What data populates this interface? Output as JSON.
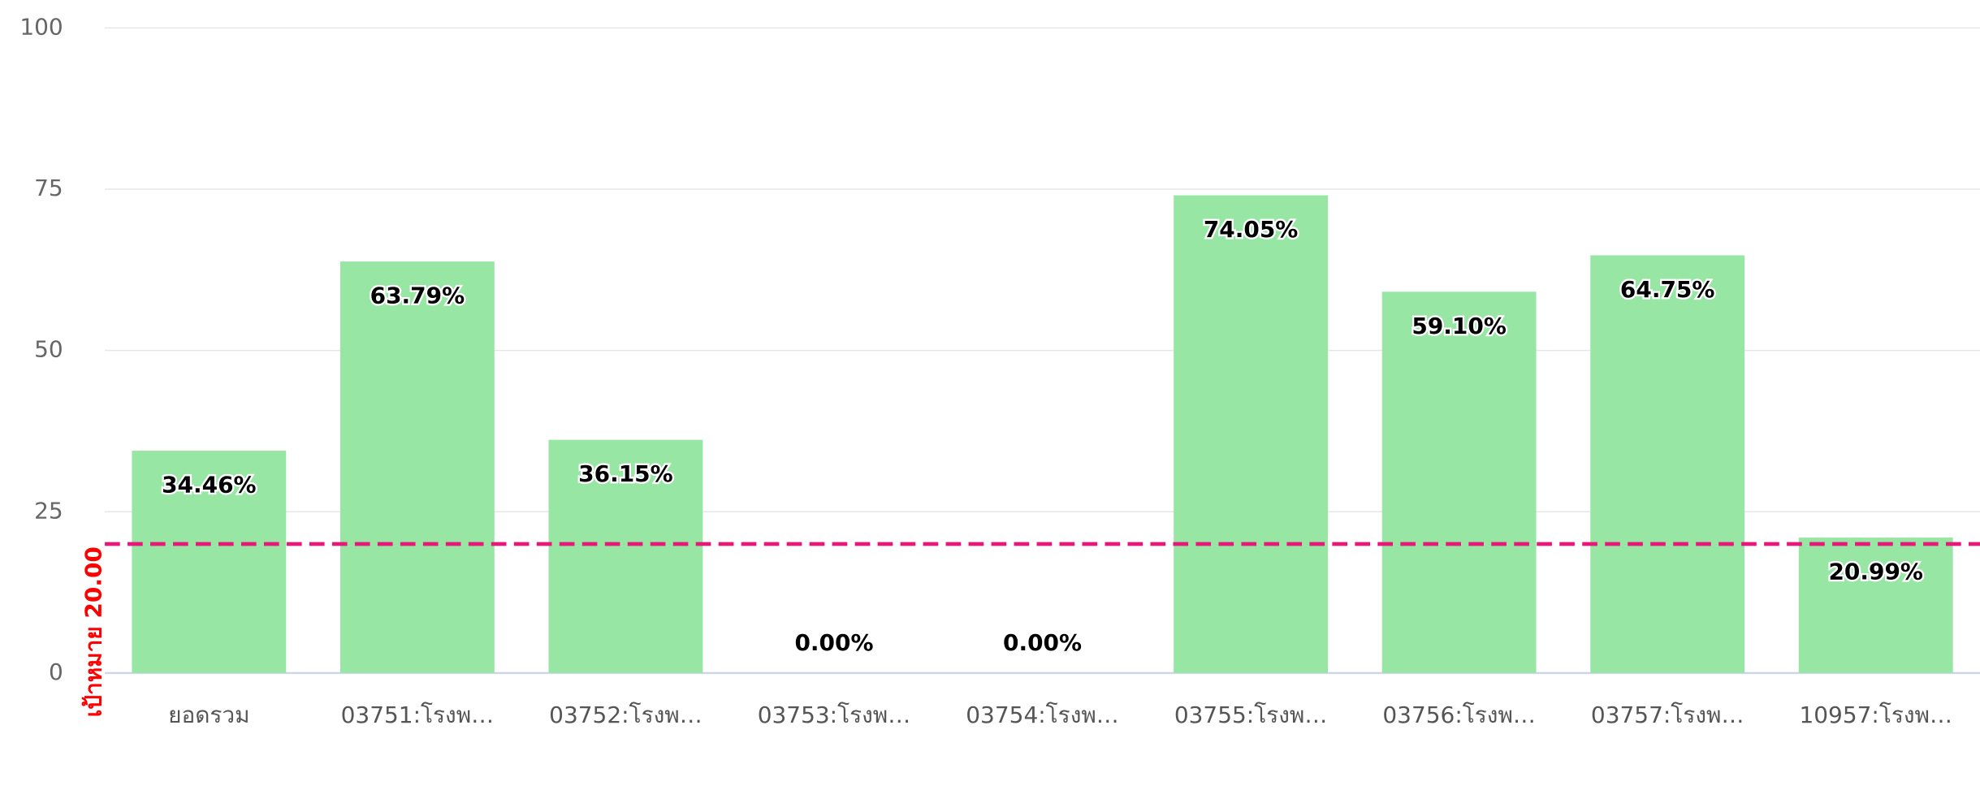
{
  "chart_data": {
    "type": "bar",
    "categories": [
      "ยอดรวม",
      "03751:โรงพ…",
      "03752:โรงพ…",
      "03753:โรงพ…",
      "03754:โรงพ…",
      "03755:โรงพ…",
      "03756:โรงพ…",
      "03757:โรงพ…",
      "10957:โรงพ…"
    ],
    "values": [
      34.46,
      63.79,
      36.15,
      0,
      0,
      74.05,
      59.1,
      64.75,
      20.99
    ],
    "value_labels": [
      "34.46%",
      "63.79%",
      "36.15%",
      "0.00%",
      "0.00%",
      "74.05%",
      "59.10%",
      "64.75%",
      "20.99%"
    ],
    "color": "#98e6a4",
    "ylim": [
      0,
      100
    ],
    "yticks": [
      0,
      25,
      50,
      75,
      100
    ],
    "grid": true,
    "target": {
      "value": 20,
      "label": "เป้าหมาย 20.00",
      "color": "#e6197a"
    }
  }
}
